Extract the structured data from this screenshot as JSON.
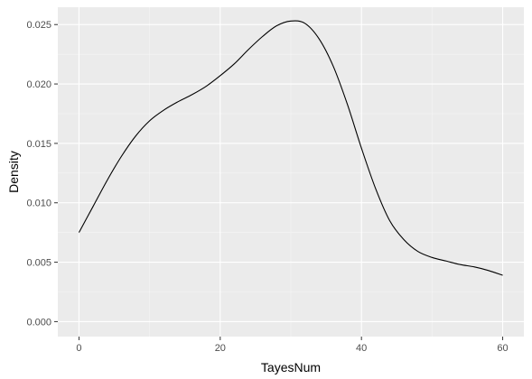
{
  "chart_data": {
    "type": "area",
    "title": "",
    "xlabel": "TayesNum",
    "ylabel": "Density",
    "xlim": [
      -3,
      63
    ],
    "ylim": [
      -0.00126,
      0.02646
    ],
    "x_ticks": [
      0,
      20,
      40,
      60
    ],
    "x_tick_labels": [
      "0",
      "20",
      "40",
      "60"
    ],
    "y_ticks": [
      0,
      0.005,
      0.01,
      0.015,
      0.02,
      0.025
    ],
    "y_tick_labels": [
      "0.000",
      "0.005",
      "0.010",
      "0.015",
      "0.020",
      "0.025"
    ],
    "grid": true,
    "legend": "none",
    "series": [
      {
        "x": [
          0,
          2,
          4,
          6,
          8,
          10,
          12,
          14,
          16,
          18,
          20,
          22,
          24,
          26,
          28,
          30,
          32,
          34,
          36,
          38,
          40,
          42,
          44,
          46,
          48,
          50,
          52,
          54,
          56,
          58,
          60
        ],
        "values": [
          0.0075,
          0.0097,
          0.0119,
          0.0139,
          0.0156,
          0.0169,
          0.0178,
          0.0185,
          0.0191,
          0.0198,
          0.0207,
          0.0217,
          0.0229,
          0.024,
          0.0249,
          0.0253,
          0.0251,
          0.0238,
          0.0215,
          0.0183,
          0.0146,
          0.0112,
          0.0085,
          0.0069,
          0.0059,
          0.0054,
          0.0051,
          0.0048,
          0.0046,
          0.0043,
          0.0039
        ]
      }
    ],
    "colors": {
      "panel_background": "#ebebeb",
      "major_grid": "#ffffff",
      "minor_grid": "#f5f5f5",
      "line": "#000000",
      "tick_text": "#4d4d4d",
      "tick_mark": "#333333"
    }
  }
}
